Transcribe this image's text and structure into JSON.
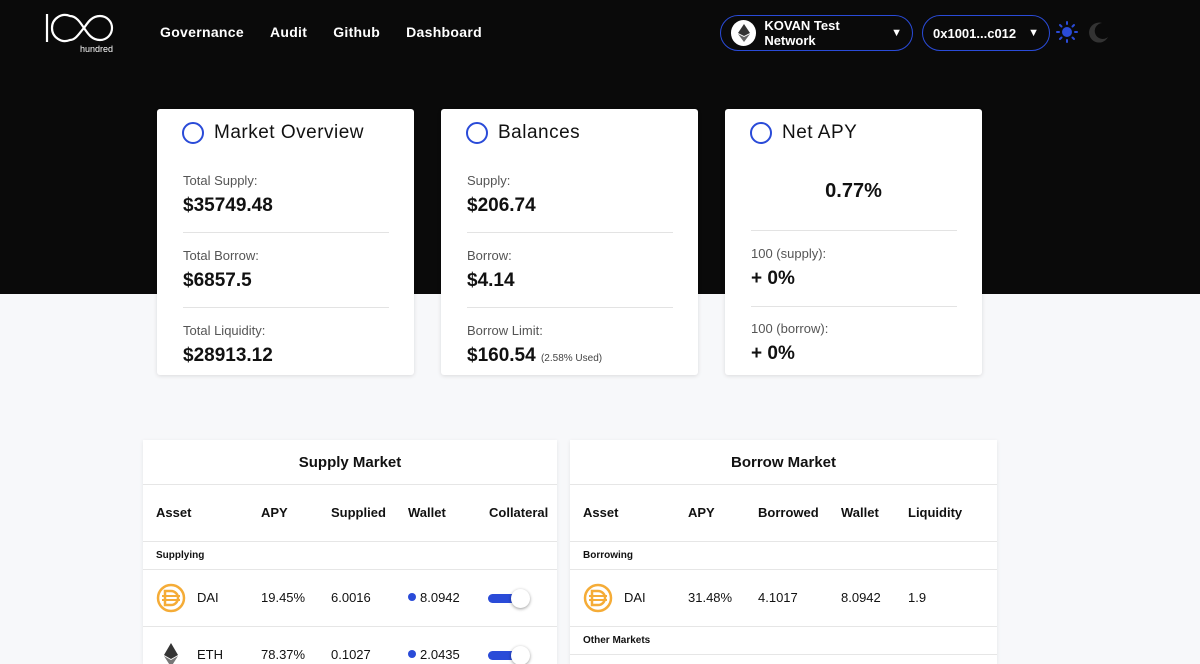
{
  "brand": {
    "logo_text": "hundred"
  },
  "nav": [
    {
      "label": "Governance"
    },
    {
      "label": "Audit"
    },
    {
      "label": "Github"
    },
    {
      "label": "Dashboard"
    }
  ],
  "network": {
    "label": "KOVAN Test Network",
    "caret": "▼"
  },
  "wallet": {
    "address": "0x1001...c012",
    "caret": "▼"
  },
  "theme": {
    "accent": "#2a4bd8"
  },
  "market_overview": {
    "title": "Market Overview",
    "total_supply_label": "Total Supply:",
    "total_supply": "$35749.48",
    "total_borrow_label": "Total Borrow:",
    "total_borrow": "$6857.5",
    "total_liquidity_label": "Total Liquidity:",
    "total_liquidity": "$28913.12"
  },
  "balances": {
    "title": "Balances",
    "supply_label": "Supply:",
    "supply": "$206.74",
    "borrow_label": "Borrow:",
    "borrow": "$4.14",
    "borrow_limit_label": "Borrow Limit:",
    "borrow_limit": "$160.54",
    "borrow_limit_used": "(2.58% Used)"
  },
  "net_apy": {
    "title": "Net APY",
    "value": "0.77%",
    "supply_label": "100 (supply):",
    "supply_value": "+ 0%",
    "borrow_label": "100 (borrow):",
    "borrow_value": "+ 0%"
  },
  "supply_market": {
    "title": "Supply Market",
    "headers": [
      "Asset",
      "APY",
      "Supplied",
      "Wallet",
      "Collateral"
    ],
    "section_label": "Supplying",
    "rows": [
      {
        "asset": "DAI",
        "icon": "dai-icon",
        "apy": "19.45%",
        "supplied": "6.0016",
        "wallet": "8.0942",
        "collateral": true
      },
      {
        "asset": "ETH",
        "icon": "eth-icon",
        "apy": "78.37%",
        "supplied": "0.1027",
        "wallet": "2.0435",
        "collateral": true
      }
    ]
  },
  "borrow_market": {
    "title": "Borrow Market",
    "headers": [
      "Asset",
      "APY",
      "Borrowed",
      "Wallet",
      "Liquidity"
    ],
    "section_label": "Borrowing",
    "rows": [
      {
        "asset": "DAI",
        "icon": "dai-icon",
        "apy": "31.48%",
        "borrowed": "4.1017",
        "wallet": "8.0942",
        "liquidity": "1.9"
      }
    ],
    "other_label": "Other Markets"
  }
}
